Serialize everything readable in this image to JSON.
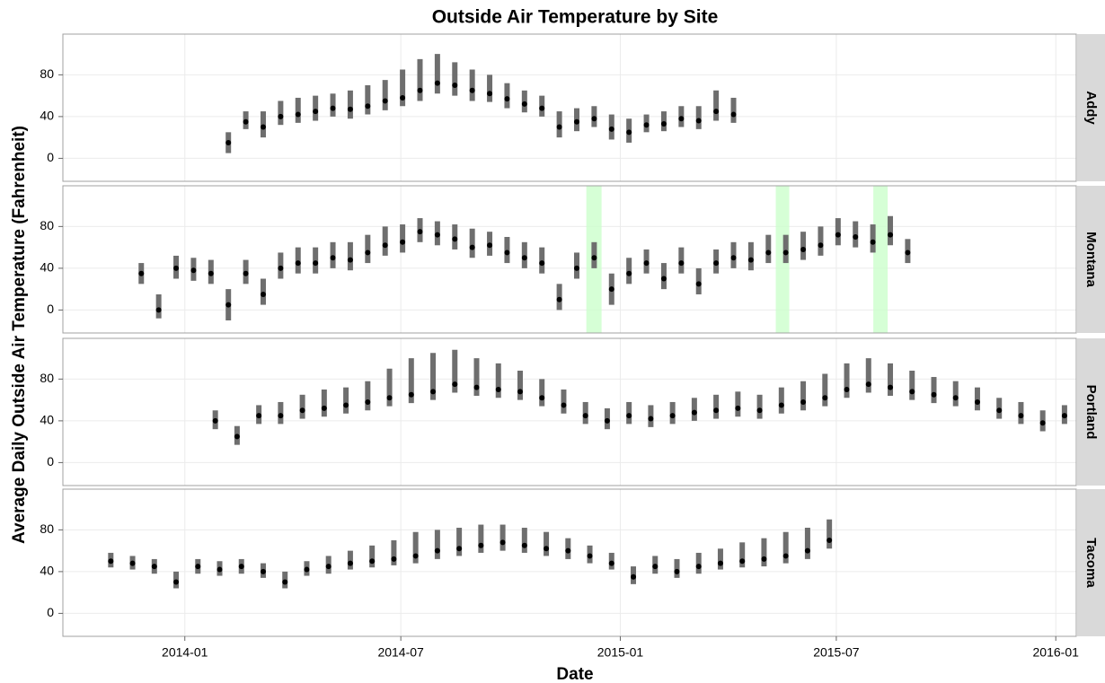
{
  "chart_data": {
    "type": "errorbar-scatter",
    "title": "Outside Air Temperature by Site",
    "x_label": "Date",
    "y_label": "Average Daily Outside Air Temperature (Fahrenheit)",
    "xlim": [
      2013.72,
      2016.047
    ],
    "xticks": [
      {
        "value": 2014.0,
        "label": "2014-01"
      },
      {
        "value": 2014.496,
        "label": "2014-07"
      },
      {
        "value": 2015.0,
        "label": "2015-01"
      },
      {
        "value": 2015.496,
        "label": "2015-07"
      },
      {
        "value": 2016.0,
        "label": "2016-01"
      }
    ],
    "ylim": [
      -22,
      119
    ],
    "yticks": [
      0,
      40,
      80
    ],
    "grid": true,
    "point_color": "#000000",
    "bar_color": "#6e6e6e",
    "highlight_color": "#ccffcc",
    "panels": [
      {
        "name": "Addy",
        "x": [
          2014.1,
          2014.14,
          2014.18,
          2014.22,
          2014.26,
          2014.3,
          2014.34,
          2014.38,
          2014.42,
          2014.46,
          2014.5,
          2014.54,
          2014.58,
          2014.62,
          2014.66,
          2014.7,
          2014.74,
          2014.78,
          2014.82,
          2014.86,
          2014.9,
          2014.94,
          2014.98,
          2015.02,
          2015.06,
          2015.1,
          2015.14,
          2015.18,
          2015.22,
          2015.26
        ],
        "values": [
          15,
          35,
          30,
          40,
          42,
          45,
          48,
          47,
          50,
          55,
          58,
          65,
          72,
          70,
          65,
          62,
          57,
          52,
          48,
          30,
          35,
          38,
          28,
          25,
          32,
          33,
          38,
          36,
          45,
          42
        ],
        "low": [
          5,
          28,
          20,
          32,
          34,
          36,
          40,
          38,
          42,
          46,
          50,
          55,
          62,
          60,
          55,
          54,
          48,
          44,
          40,
          20,
          26,
          30,
          18,
          15,
          25,
          26,
          30,
          28,
          36,
          34
        ],
        "high": [
          25,
          45,
          45,
          55,
          58,
          60,
          62,
          65,
          70,
          75,
          85,
          95,
          100,
          92,
          85,
          80,
          72,
          65,
          60,
          45,
          48,
          50,
          42,
          38,
          42,
          45,
          50,
          50,
          65,
          58
        ],
        "highlights": []
      },
      {
        "name": "Montana",
        "x": [
          2013.9,
          2013.94,
          2013.98,
          2014.02,
          2014.06,
          2014.1,
          2014.14,
          2014.18,
          2014.22,
          2014.26,
          2014.3,
          2014.34,
          2014.38,
          2014.42,
          2014.46,
          2014.5,
          2014.54,
          2014.58,
          2014.62,
          2014.66,
          2014.7,
          2014.74,
          2014.78,
          2014.82,
          2014.86,
          2014.9,
          2014.94,
          2014.98,
          2015.02,
          2015.06,
          2015.1,
          2015.14,
          2015.18,
          2015.22,
          2015.26,
          2015.3,
          2015.34,
          2015.38,
          2015.42,
          2015.46,
          2015.5,
          2015.54,
          2015.58,
          2015.62,
          2015.66
        ],
        "values": [
          35,
          0,
          40,
          38,
          35,
          5,
          35,
          15,
          40,
          45,
          45,
          50,
          48,
          55,
          62,
          65,
          75,
          72,
          68,
          60,
          62,
          55,
          50,
          45,
          10,
          40,
          50,
          20,
          35,
          45,
          30,
          45,
          25,
          45,
          50,
          48,
          55,
          55,
          58,
          62,
          72,
          70,
          65,
          72,
          55
        ],
        "low": [
          25,
          -8,
          30,
          28,
          25,
          -10,
          25,
          5,
          30,
          35,
          35,
          40,
          38,
          45,
          52,
          55,
          65,
          62,
          58,
          50,
          52,
          45,
          40,
          35,
          0,
          30,
          40,
          5,
          25,
          35,
          20,
          35,
          15,
          35,
          40,
          38,
          45,
          45,
          48,
          52,
          62,
          60,
          55,
          62,
          45
        ],
        "high": [
          45,
          15,
          52,
          50,
          48,
          20,
          48,
          30,
          55,
          60,
          60,
          65,
          65,
          72,
          80,
          82,
          88,
          85,
          82,
          78,
          75,
          70,
          65,
          60,
          25,
          55,
          65,
          35,
          50,
          58,
          45,
          60,
          40,
          58,
          65,
          65,
          72,
          72,
          75,
          80,
          88,
          85,
          82,
          90,
          68
        ],
        "highlights": [
          {
            "start": 2014.922,
            "end": 2014.957
          },
          {
            "start": 2015.357,
            "end": 2015.388
          },
          {
            "start": 2015.581,
            "end": 2015.614
          }
        ]
      },
      {
        "name": "Portland",
        "x": [
          2014.07,
          2014.12,
          2014.17,
          2014.22,
          2014.27,
          2014.32,
          2014.37,
          2014.42,
          2014.47,
          2014.52,
          2014.57,
          2014.62,
          2014.67,
          2014.72,
          2014.77,
          2014.82,
          2014.87,
          2014.92,
          2014.97,
          2015.02,
          2015.07,
          2015.12,
          2015.17,
          2015.22,
          2015.27,
          2015.32,
          2015.37,
          2015.42,
          2015.47,
          2015.52,
          2015.57,
          2015.62,
          2015.67,
          2015.72,
          2015.77,
          2015.82,
          2015.87,
          2015.92,
          2015.97,
          2016.02
        ],
        "values": [
          40,
          25,
          45,
          45,
          50,
          52,
          55,
          58,
          62,
          65,
          68,
          75,
          72,
          70,
          68,
          62,
          55,
          45,
          40,
          45,
          42,
          45,
          48,
          50,
          52,
          50,
          55,
          58,
          62,
          70,
          75,
          72,
          68,
          65,
          62,
          58,
          50,
          45,
          38,
          45
        ],
        "low": [
          32,
          17,
          37,
          37,
          42,
          44,
          47,
          50,
          54,
          57,
          60,
          67,
          64,
          62,
          60,
          54,
          47,
          37,
          32,
          37,
          34,
          37,
          40,
          42,
          44,
          42,
          47,
          50,
          54,
          62,
          67,
          64,
          60,
          57,
          54,
          50,
          42,
          37,
          30,
          37
        ],
        "high": [
          50,
          35,
          55,
          58,
          65,
          70,
          72,
          78,
          90,
          100,
          105,
          108,
          100,
          95,
          88,
          80,
          70,
          58,
          52,
          58,
          55,
          58,
          62,
          65,
          68,
          65,
          72,
          78,
          85,
          95,
          100,
          95,
          88,
          82,
          78,
          72,
          62,
          58,
          50,
          55
        ],
        "highlights": []
      },
      {
        "name": "Tacoma",
        "x": [
          2013.83,
          2013.88,
          2013.93,
          2013.98,
          2014.03,
          2014.08,
          2014.13,
          2014.18,
          2014.23,
          2014.28,
          2014.33,
          2014.38,
          2014.43,
          2014.48,
          2014.53,
          2014.58,
          2014.63,
          2014.68,
          2014.73,
          2014.78,
          2014.83,
          2014.88,
          2014.93,
          2014.98,
          2015.03,
          2015.08,
          2015.13,
          2015.18,
          2015.23,
          2015.28,
          2015.33,
          2015.38,
          2015.43,
          2015.48
        ],
        "values": [
          50,
          48,
          45,
          30,
          45,
          42,
          45,
          40,
          30,
          42,
          45,
          48,
          50,
          52,
          55,
          60,
          62,
          65,
          68,
          65,
          62,
          60,
          55,
          48,
          35,
          45,
          40,
          45,
          48,
          50,
          52,
          55,
          60,
          70
        ],
        "low": [
          44,
          42,
          38,
          24,
          38,
          36,
          38,
          34,
          24,
          36,
          38,
          42,
          44,
          46,
          48,
          52,
          55,
          58,
          60,
          58,
          55,
          52,
          48,
          42,
          28,
          38,
          34,
          38,
          42,
          44,
          45,
          48,
          52,
          62
        ],
        "high": [
          58,
          55,
          52,
          40,
          52,
          50,
          52,
          48,
          40,
          50,
          55,
          60,
          65,
          70,
          78,
          80,
          82,
          85,
          85,
          82,
          78,
          72,
          65,
          58,
          45,
          55,
          52,
          58,
          62,
          68,
          72,
          78,
          82,
          90
        ],
        "highlights": []
      }
    ]
  }
}
